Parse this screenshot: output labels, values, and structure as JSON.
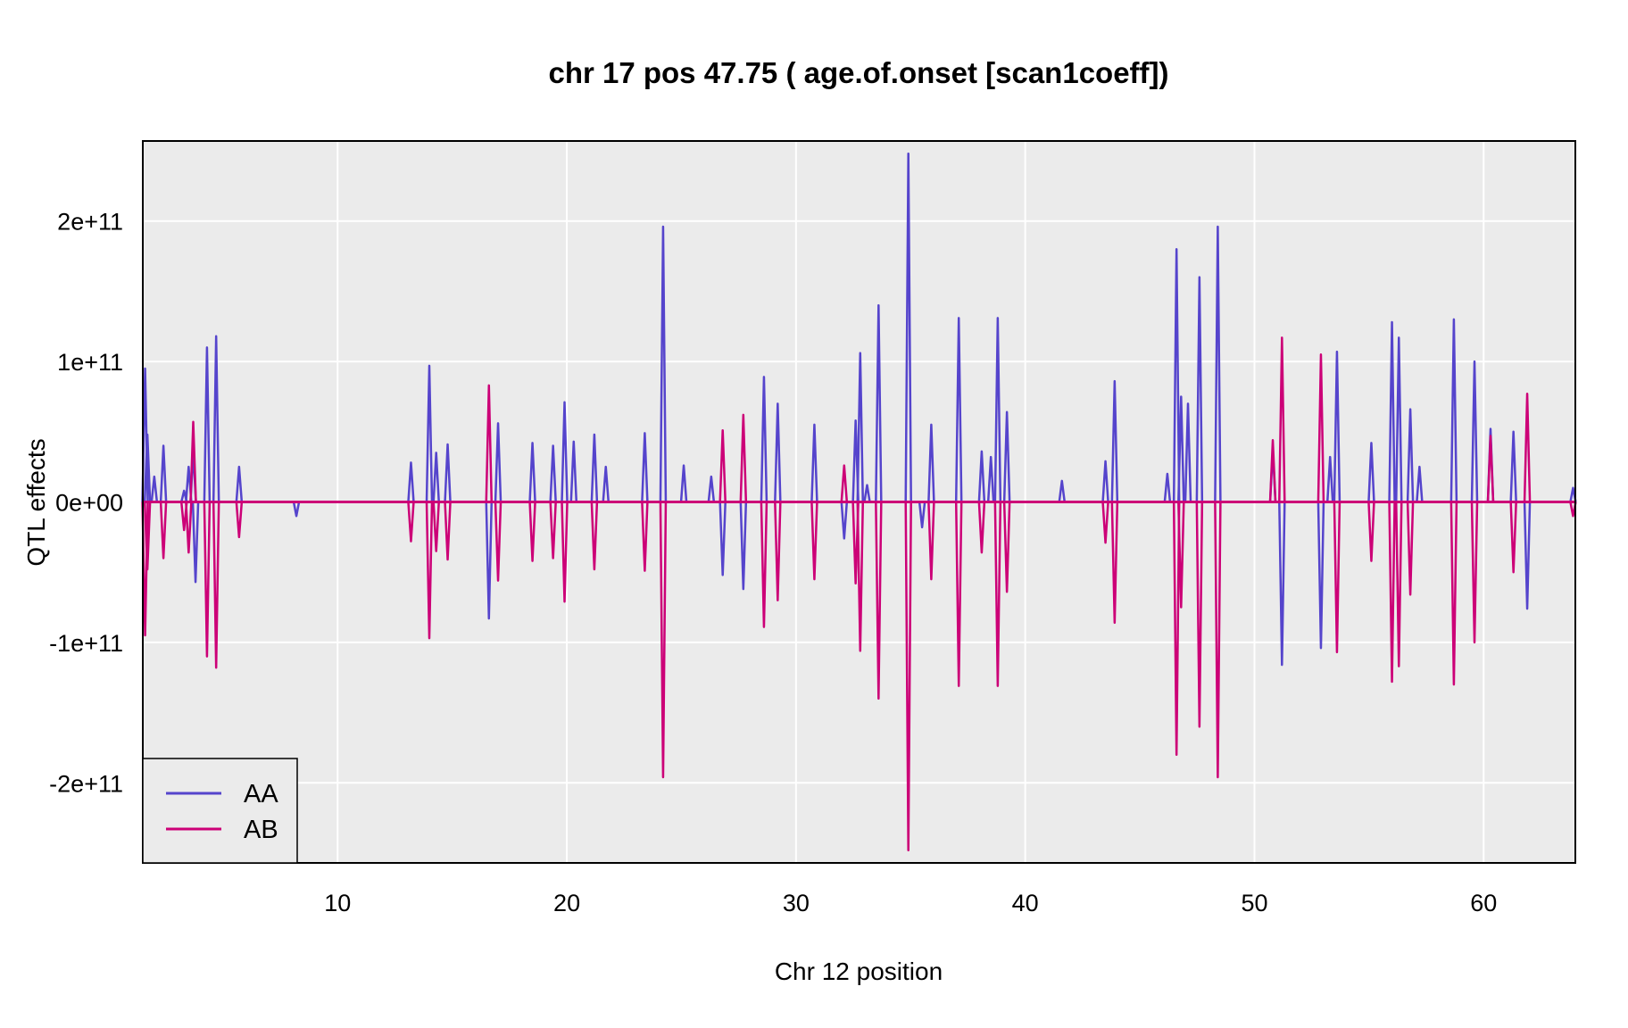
{
  "chart_data": {
    "type": "line",
    "title": "chr 17 pos 47.75 ( age.of.onset  [scan1coeff])",
    "xlabel": "Chr 12 position",
    "ylabel": "QTL effects",
    "xlim": [
      1.5,
      64
    ],
    "ylim": [
      -257000000000.0,
      257000000000.0
    ],
    "xticks": [
      {
        "value": 10,
        "label": "10"
      },
      {
        "value": 20,
        "label": "20"
      },
      {
        "value": 30,
        "label": "30"
      },
      {
        "value": 40,
        "label": "40"
      },
      {
        "value": 50,
        "label": "50"
      },
      {
        "value": 60,
        "label": "60"
      }
    ],
    "yticks": [
      {
        "value": 200000000000,
        "label": "2e+11"
      },
      {
        "value": 100000000000,
        "label": "1e+11"
      },
      {
        "value": 0,
        "label": "0e+00"
      },
      {
        "value": -100000000000,
        "label": "-1e+11"
      },
      {
        "value": -200000000000,
        "label": "-2e+11"
      }
    ],
    "grid": true,
    "legend_position": "bottom-left",
    "series": [
      {
        "name": "AA",
        "color": "#5544cc",
        "spikes": [
          [
            1.6,
            0.95
          ],
          [
            1.7,
            0.48
          ],
          [
            2.0,
            0.18
          ],
          [
            2.4,
            0.4
          ],
          [
            3.3,
            0.08
          ],
          [
            3.5,
            0.25
          ],
          [
            3.7,
            0.36
          ],
          [
            3.8,
            -0.57
          ],
          [
            4.3,
            1.1
          ],
          [
            4.7,
            1.18
          ],
          [
            5.7,
            0.25
          ],
          [
            8.2,
            -0.1
          ],
          [
            13.2,
            0.28
          ],
          [
            14.0,
            0.97
          ],
          [
            14.3,
            0.35
          ],
          [
            14.8,
            0.41
          ],
          [
            16.6,
            -0.83
          ],
          [
            17.0,
            0.56
          ],
          [
            18.5,
            0.42
          ],
          [
            19.4,
            0.4
          ],
          [
            19.9,
            0.71
          ],
          [
            20.3,
            0.43
          ],
          [
            21.2,
            0.48
          ],
          [
            21.7,
            0.25
          ],
          [
            23.4,
            0.49
          ],
          [
            24.2,
            1.96
          ],
          [
            25.1,
            0.26
          ],
          [
            26.3,
            0.18
          ],
          [
            26.8,
            -0.52
          ],
          [
            27.7,
            -0.62
          ],
          [
            28.6,
            0.89
          ],
          [
            29.2,
            0.7
          ],
          [
            30.8,
            0.55
          ],
          [
            32.1,
            -0.26
          ],
          [
            32.6,
            0.58
          ],
          [
            32.8,
            1.06
          ],
          [
            33.1,
            0.12
          ],
          [
            33.6,
            1.4
          ],
          [
            34.9,
            2.48
          ],
          [
            35.5,
            -0.18
          ],
          [
            35.9,
            0.55
          ],
          [
            37.1,
            1.31
          ],
          [
            38.1,
            0.36
          ],
          [
            38.5,
            0.32
          ],
          [
            38.8,
            1.31
          ],
          [
            39.2,
            0.64
          ],
          [
            41.6,
            0.15
          ],
          [
            43.5,
            0.29
          ],
          [
            43.9,
            0.86
          ],
          [
            46.2,
            0.2
          ],
          [
            46.6,
            1.8
          ],
          [
            46.8,
            0.75
          ],
          [
            47.1,
            0.7
          ],
          [
            47.6,
            1.6
          ],
          [
            48.4,
            1.96
          ],
          [
            50.8,
            0.37
          ],
          [
            51.2,
            -1.16
          ],
          [
            52.9,
            -1.04
          ],
          [
            53.3,
            0.32
          ],
          [
            53.6,
            1.07
          ],
          [
            55.1,
            0.42
          ],
          [
            56.0,
            1.28
          ],
          [
            56.3,
            1.17
          ],
          [
            56.8,
            0.66
          ],
          [
            57.2,
            0.25
          ],
          [
            58.7,
            1.3
          ],
          [
            59.6,
            1.0
          ],
          [
            60.3,
            0.52
          ],
          [
            61.3,
            0.5
          ],
          [
            61.9,
            -0.76
          ],
          [
            63.9,
            0.1
          ]
        ]
      },
      {
        "name": "AB",
        "color": "#cc0077",
        "spikes": [
          [
            1.6,
            -0.95
          ],
          [
            1.7,
            -0.48
          ],
          [
            2.4,
            -0.4
          ],
          [
            3.3,
            -0.2
          ],
          [
            3.5,
            -0.36
          ],
          [
            3.7,
            0.57
          ],
          [
            4.3,
            -1.1
          ],
          [
            4.7,
            -1.18
          ],
          [
            5.7,
            -0.25
          ],
          [
            13.2,
            -0.28
          ],
          [
            14.0,
            -0.97
          ],
          [
            14.3,
            -0.35
          ],
          [
            14.8,
            -0.41
          ],
          [
            16.6,
            0.83
          ],
          [
            17.0,
            -0.56
          ],
          [
            18.5,
            -0.42
          ],
          [
            19.4,
            -0.4
          ],
          [
            19.9,
            -0.71
          ],
          [
            21.2,
            -0.48
          ],
          [
            23.4,
            -0.49
          ],
          [
            24.2,
            -1.96
          ],
          [
            26.8,
            0.51
          ],
          [
            27.7,
            0.62
          ],
          [
            28.6,
            -0.89
          ],
          [
            29.2,
            -0.7
          ],
          [
            30.8,
            -0.55
          ],
          [
            32.1,
            0.26
          ],
          [
            32.6,
            -0.58
          ],
          [
            32.8,
            -1.06
          ],
          [
            33.6,
            -1.4
          ],
          [
            34.9,
            -2.48
          ],
          [
            35.9,
            -0.55
          ],
          [
            37.1,
            -1.31
          ],
          [
            38.1,
            -0.36
          ],
          [
            38.8,
            -1.31
          ],
          [
            39.2,
            -0.64
          ],
          [
            43.5,
            -0.29
          ],
          [
            43.9,
            -0.86
          ],
          [
            46.6,
            -1.8
          ],
          [
            46.8,
            -0.75
          ],
          [
            47.6,
            -1.6
          ],
          [
            48.4,
            -1.96
          ],
          [
            50.8,
            0.44
          ],
          [
            51.2,
            1.17
          ],
          [
            52.9,
            1.05
          ],
          [
            53.6,
            -1.07
          ],
          [
            55.1,
            -0.42
          ],
          [
            56.0,
            -1.28
          ],
          [
            56.3,
            -1.17
          ],
          [
            56.8,
            -0.66
          ],
          [
            58.7,
            -1.3
          ],
          [
            59.6,
            -1.0
          ],
          [
            60.3,
            0.47
          ],
          [
            61.3,
            -0.5
          ],
          [
            61.9,
            0.77
          ],
          [
            63.9,
            -0.1
          ]
        ]
      }
    ]
  }
}
